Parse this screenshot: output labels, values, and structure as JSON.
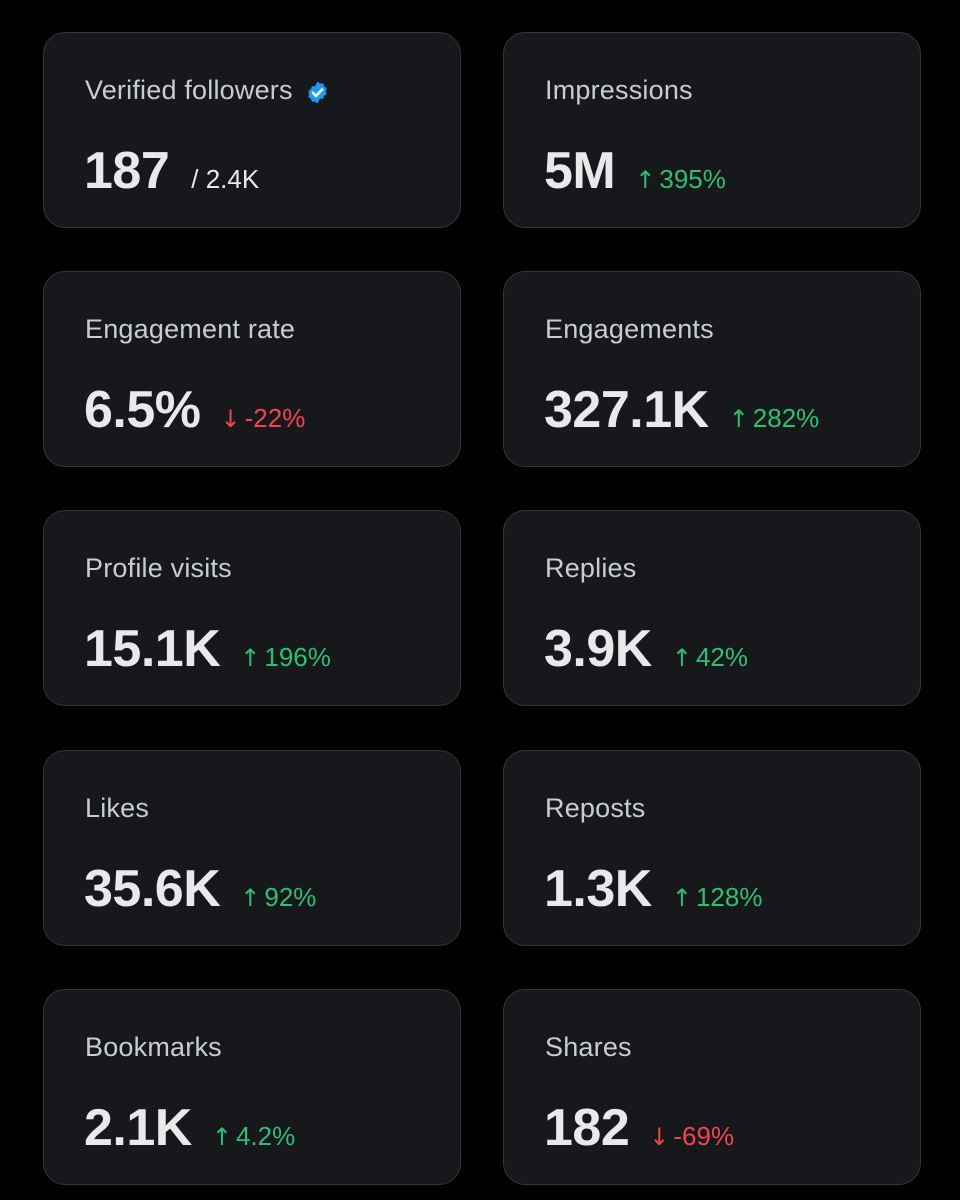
{
  "metrics": [
    {
      "title": "Verified followers",
      "value": "187",
      "sub": "/ 2.4K",
      "verified_icon": "verified-badge-icon"
    },
    {
      "title": "Impressions",
      "value": "5M",
      "change": "395%",
      "direction": "up"
    },
    {
      "title": "Engagement rate",
      "value": "6.5%",
      "change": "-22%",
      "direction": "down"
    },
    {
      "title": "Engagements",
      "value": "327.1K",
      "change": "282%",
      "direction": "up"
    },
    {
      "title": "Profile visits",
      "value": "15.1K",
      "change": "196%",
      "direction": "up"
    },
    {
      "title": "Replies",
      "value": "3.9K",
      "change": "42%",
      "direction": "up"
    },
    {
      "title": "Likes",
      "value": "35.6K",
      "change": "92%",
      "direction": "up"
    },
    {
      "title": "Reposts",
      "value": "1.3K",
      "change": "128%",
      "direction": "up"
    },
    {
      "title": "Bookmarks",
      "value": "2.1K",
      "change": "4.2%",
      "direction": "up"
    },
    {
      "title": "Shares",
      "value": "182",
      "change": "-69%",
      "direction": "down"
    }
  ],
  "colors": {
    "background": "#000000",
    "card_background": "#16181c",
    "card_border": "#33363b",
    "title_text": "#c9ccd1",
    "value_text": "#e7e9ea",
    "positive": "#2fbf71",
    "negative": "#f4444e",
    "verified_blue": "#1d9bf0"
  }
}
